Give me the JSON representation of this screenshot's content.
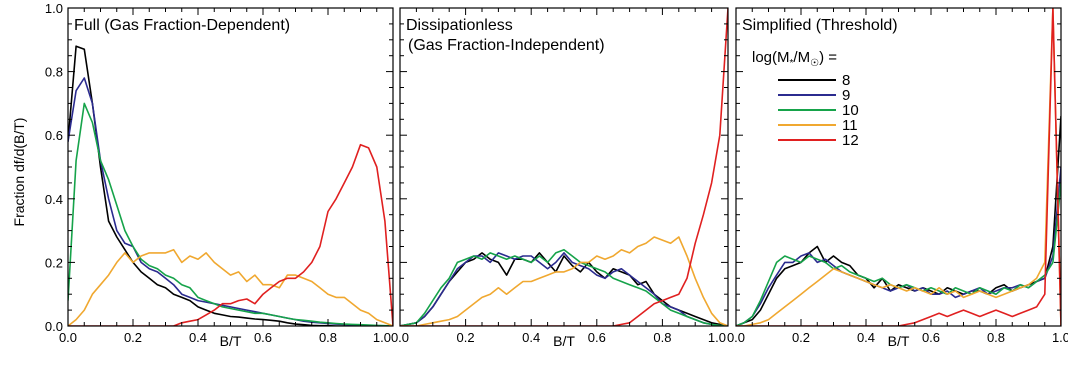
{
  "figure": {
    "ylabel": "Fraction df/d(B/T)",
    "xlabel": "B/T"
  },
  "legend": {
    "title_prefix": "log(M",
    "title_sub1": "*",
    "title_mid": "/M",
    "title_sub2": "☉",
    "title_suffix": ") ="
  },
  "colors": {
    "8": "#000000",
    "9": "#2b2b8f",
    "10": "#16a34a",
    "11": "#f0a830",
    "12": "#e02020"
  },
  "chart_data": [
    {
      "type": "line",
      "title": "Full (Gas Fraction-Dependent)",
      "xlabel": "B/T",
      "ylabel": "Fraction df/d(B/T)",
      "xlim": [
        0,
        1
      ],
      "ylim": [
        0,
        1
      ],
      "xticks": [
        "0.0",
        "0.2",
        "0.4",
        "0.6",
        "0.8",
        "1.0"
      ],
      "yticks": [
        "0.0",
        "0.2",
        "0.4",
        "0.6",
        "0.8",
        "1.0"
      ],
      "x": [
        0.0,
        0.025,
        0.05,
        0.075,
        0.1,
        0.125,
        0.15,
        0.175,
        0.2,
        0.225,
        0.25,
        0.275,
        0.3,
        0.325,
        0.35,
        0.375,
        0.4,
        0.425,
        0.45,
        0.475,
        0.5,
        0.525,
        0.55,
        0.575,
        0.6,
        0.625,
        0.65,
        0.675,
        0.7,
        0.725,
        0.75,
        0.775,
        0.8,
        0.825,
        0.85,
        0.875,
        0.9,
        0.925,
        0.95,
        0.975,
        1.0
      ],
      "series": [
        {
          "name": "8",
          "values": [
            0.58,
            0.88,
            0.87,
            0.7,
            0.5,
            0.33,
            0.28,
            0.24,
            0.2,
            0.17,
            0.15,
            0.13,
            0.12,
            0.1,
            0.09,
            0.08,
            0.06,
            0.05,
            0.04,
            0.035,
            0.03,
            0.028,
            0.025,
            0.022,
            0.02,
            0.018,
            0.015,
            0.01,
            0.006,
            0.004,
            0.002,
            0.001,
            0.001,
            0.0,
            0.0,
            0.0,
            0.0,
            0.0,
            0.0,
            0.0,
            0.0
          ]
        },
        {
          "name": "9",
          "values": [
            0.58,
            0.74,
            0.78,
            0.7,
            0.52,
            0.4,
            0.3,
            0.26,
            0.25,
            0.2,
            0.18,
            0.17,
            0.15,
            0.13,
            0.1,
            0.09,
            0.08,
            0.075,
            0.07,
            0.065,
            0.06,
            0.055,
            0.05,
            0.045,
            0.04,
            0.035,
            0.03,
            0.025,
            0.02,
            0.015,
            0.012,
            0.01,
            0.008,
            0.006,
            0.005,
            0.003,
            0.002,
            0.001,
            0.0,
            0.0,
            0.0
          ]
        },
        {
          "name": "10",
          "values": [
            0.08,
            0.52,
            0.7,
            0.64,
            0.52,
            0.46,
            0.38,
            0.3,
            0.25,
            0.21,
            0.19,
            0.18,
            0.16,
            0.15,
            0.13,
            0.12,
            0.09,
            0.08,
            0.07,
            0.06,
            0.055,
            0.05,
            0.045,
            0.04,
            0.04,
            0.035,
            0.03,
            0.025,
            0.02,
            0.018,
            0.015,
            0.012,
            0.01,
            0.008,
            0.006,
            0.005,
            0.004,
            0.003,
            0.002,
            0.001,
            0.0
          ]
        },
        {
          "name": "11",
          "values": [
            0.0,
            0.02,
            0.05,
            0.1,
            0.13,
            0.16,
            0.2,
            0.23,
            0.2,
            0.22,
            0.23,
            0.23,
            0.23,
            0.24,
            0.2,
            0.22,
            0.21,
            0.23,
            0.2,
            0.18,
            0.16,
            0.17,
            0.14,
            0.16,
            0.13,
            0.13,
            0.12,
            0.16,
            0.16,
            0.15,
            0.14,
            0.12,
            0.1,
            0.09,
            0.09,
            0.07,
            0.05,
            0.04,
            0.02,
            0.01,
            0.0
          ]
        },
        {
          "name": "12",
          "values": [
            0.0,
            0.0,
            0.0,
            0.0,
            0.0,
            0.0,
            0.0,
            0.0,
            0.0,
            0.0,
            0.0,
            0.0,
            0.0,
            0.0,
            0.01,
            0.015,
            0.02,
            0.035,
            0.05,
            0.07,
            0.07,
            0.08,
            0.085,
            0.07,
            0.1,
            0.12,
            0.14,
            0.15,
            0.15,
            0.17,
            0.2,
            0.25,
            0.36,
            0.4,
            0.45,
            0.5,
            0.57,
            0.56,
            0.5,
            0.33,
            0.0
          ]
        }
      ]
    },
    {
      "type": "line",
      "title": "Dissipationless",
      "subtitle": "(Gas Fraction-Independent)",
      "xlabel": "B/T",
      "xlim": [
        0,
        1
      ],
      "ylim": [
        0,
        1
      ],
      "xticks": [
        "0.0",
        "0.2",
        "0.4",
        "0.6",
        "0.8",
        "1.0"
      ],
      "x": [
        0.0,
        0.025,
        0.05,
        0.075,
        0.1,
        0.125,
        0.15,
        0.175,
        0.2,
        0.225,
        0.25,
        0.275,
        0.3,
        0.325,
        0.35,
        0.375,
        0.4,
        0.425,
        0.45,
        0.475,
        0.5,
        0.525,
        0.55,
        0.575,
        0.6,
        0.625,
        0.65,
        0.675,
        0.7,
        0.725,
        0.75,
        0.775,
        0.8,
        0.825,
        0.85,
        0.875,
        0.9,
        0.925,
        0.95,
        0.975,
        1.0
      ],
      "series": [
        {
          "name": "8",
          "values": [
            0.0,
            0.005,
            0.01,
            0.03,
            0.06,
            0.1,
            0.14,
            0.17,
            0.2,
            0.21,
            0.23,
            0.21,
            0.2,
            0.16,
            0.21,
            0.21,
            0.2,
            0.23,
            0.2,
            0.17,
            0.22,
            0.19,
            0.17,
            0.2,
            0.17,
            0.15,
            0.18,
            0.17,
            0.16,
            0.13,
            0.14,
            0.1,
            0.08,
            0.06,
            0.05,
            0.04,
            0.03,
            0.02,
            0.01,
            0.005,
            0.0
          ]
        },
        {
          "name": "9",
          "values": [
            0.0,
            0.005,
            0.01,
            0.03,
            0.06,
            0.1,
            0.14,
            0.18,
            0.2,
            0.22,
            0.22,
            0.2,
            0.23,
            0.22,
            0.21,
            0.22,
            0.22,
            0.2,
            0.18,
            0.2,
            0.23,
            0.2,
            0.19,
            0.18,
            0.16,
            0.15,
            0.17,
            0.18,
            0.16,
            0.14,
            0.12,
            0.1,
            0.07,
            0.06,
            0.05,
            0.03,
            0.02,
            0.01,
            0.005,
            0.002,
            0.0
          ]
        },
        {
          "name": "10",
          "values": [
            0.0,
            0.005,
            0.01,
            0.04,
            0.08,
            0.12,
            0.15,
            0.2,
            0.21,
            0.22,
            0.21,
            0.23,
            0.22,
            0.21,
            0.22,
            0.21,
            0.2,
            0.22,
            0.2,
            0.23,
            0.24,
            0.22,
            0.2,
            0.19,
            0.18,
            0.17,
            0.15,
            0.14,
            0.13,
            0.12,
            0.11,
            0.09,
            0.07,
            0.05,
            0.04,
            0.03,
            0.02,
            0.01,
            0.005,
            0.002,
            0.0
          ]
        },
        {
          "name": "11",
          "values": [
            0.0,
            0.0,
            0.0,
            0.005,
            0.01,
            0.015,
            0.02,
            0.03,
            0.05,
            0.07,
            0.09,
            0.1,
            0.12,
            0.1,
            0.12,
            0.14,
            0.14,
            0.15,
            0.16,
            0.17,
            0.17,
            0.18,
            0.2,
            0.2,
            0.22,
            0.21,
            0.22,
            0.24,
            0.23,
            0.25,
            0.26,
            0.28,
            0.27,
            0.26,
            0.28,
            0.22,
            0.15,
            0.09,
            0.04,
            0.01,
            0.0
          ]
        },
        {
          "name": "12",
          "values": [
            0.0,
            0.0,
            0.0,
            0.0,
            0.0,
            0.0,
            0.0,
            0.0,
            0.0,
            0.0,
            0.0,
            0.0,
            0.0,
            0.0,
            0.0,
            0.0,
            0.0,
            0.0,
            0.0,
            0.0,
            0.0,
            0.0,
            0.0,
            0.0,
            0.0,
            0.0,
            0.0,
            0.005,
            0.01,
            0.03,
            0.05,
            0.07,
            0.08,
            0.09,
            0.1,
            0.15,
            0.26,
            0.35,
            0.45,
            0.6,
            1.0
          ]
        }
      ]
    },
    {
      "type": "line",
      "title": "Simplified (Threshold)",
      "xlabel": "B/T",
      "xlim": [
        0,
        1
      ],
      "ylim": [
        0,
        1
      ],
      "xticks": [
        "0.0",
        "0.2",
        "0.4",
        "0.6",
        "0.8",
        "1.0"
      ],
      "x": [
        0.0,
        0.025,
        0.05,
        0.075,
        0.1,
        0.125,
        0.15,
        0.175,
        0.2,
        0.225,
        0.25,
        0.275,
        0.3,
        0.325,
        0.35,
        0.375,
        0.4,
        0.425,
        0.45,
        0.475,
        0.5,
        0.525,
        0.55,
        0.575,
        0.6,
        0.625,
        0.65,
        0.675,
        0.7,
        0.725,
        0.75,
        0.775,
        0.8,
        0.825,
        0.85,
        0.875,
        0.9,
        0.925,
        0.95,
        0.975,
        1.0
      ],
      "series": [
        {
          "name": "8",
          "values": [
            0.0,
            0.01,
            0.02,
            0.05,
            0.1,
            0.15,
            0.18,
            0.19,
            0.2,
            0.23,
            0.25,
            0.2,
            0.22,
            0.2,
            0.19,
            0.16,
            0.15,
            0.12,
            0.15,
            0.11,
            0.13,
            0.12,
            0.11,
            0.12,
            0.11,
            0.1,
            0.12,
            0.11,
            0.1,
            0.11,
            0.11,
            0.1,
            0.12,
            0.13,
            0.11,
            0.12,
            0.13,
            0.14,
            0.15,
            0.25,
            0.66
          ]
        },
        {
          "name": "9",
          "values": [
            0.0,
            0.01,
            0.03,
            0.07,
            0.12,
            0.16,
            0.2,
            0.2,
            0.22,
            0.23,
            0.2,
            0.21,
            0.19,
            0.17,
            0.16,
            0.15,
            0.14,
            0.13,
            0.12,
            0.11,
            0.12,
            0.13,
            0.11,
            0.12,
            0.1,
            0.1,
            0.11,
            0.09,
            0.1,
            0.11,
            0.12,
            0.1,
            0.11,
            0.12,
            0.12,
            0.13,
            0.12,
            0.14,
            0.15,
            0.22,
            0.5
          ]
        },
        {
          "name": "10",
          "values": [
            0.0,
            0.01,
            0.03,
            0.08,
            0.14,
            0.2,
            0.22,
            0.21,
            0.2,
            0.22,
            0.21,
            0.2,
            0.18,
            0.19,
            0.17,
            0.16,
            0.15,
            0.14,
            0.15,
            0.13,
            0.12,
            0.13,
            0.12,
            0.11,
            0.12,
            0.11,
            0.1,
            0.12,
            0.11,
            0.1,
            0.12,
            0.11,
            0.1,
            0.12,
            0.11,
            0.13,
            0.12,
            0.14,
            0.16,
            0.2,
            0.45
          ]
        },
        {
          "name": "11",
          "values": [
            0.0,
            0.0,
            0.005,
            0.01,
            0.02,
            0.04,
            0.06,
            0.08,
            0.1,
            0.12,
            0.14,
            0.16,
            0.18,
            0.17,
            0.16,
            0.15,
            0.14,
            0.13,
            0.12,
            0.13,
            0.12,
            0.11,
            0.12,
            0.11,
            0.1,
            0.12,
            0.1,
            0.11,
            0.09,
            0.1,
            0.11,
            0.1,
            0.09,
            0.1,
            0.11,
            0.12,
            0.13,
            0.15,
            0.2,
            1.0,
            0.0
          ]
        },
        {
          "name": "12",
          "values": [
            0.0,
            0.0,
            0.0,
            0.0,
            0.0,
            0.0,
            0.0,
            0.0,
            0.0,
            0.0,
            0.0,
            0.0,
            0.0,
            0.0,
            0.0,
            0.0,
            0.0,
            0.0,
            0.0,
            0.0,
            0.0,
            0.005,
            0.01,
            0.02,
            0.03,
            0.04,
            0.03,
            0.04,
            0.05,
            0.04,
            0.03,
            0.04,
            0.05,
            0.04,
            0.03,
            0.04,
            0.05,
            0.06,
            0.1,
            1.0,
            0.0
          ]
        }
      ]
    }
  ]
}
